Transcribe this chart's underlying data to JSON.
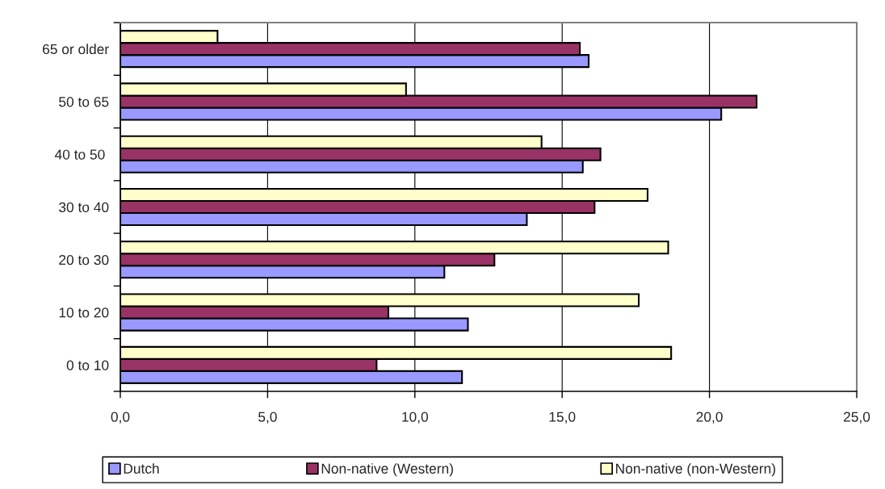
{
  "chart_data": {
    "type": "bar",
    "orientation": "horizontal",
    "categories": [
      "65 or older",
      "50 to 65",
      "40 to 50 ",
      "30 to 40",
      "20 to 30",
      "10 to 20",
      "0 to 10"
    ],
    "series": [
      {
        "name": "Dutch",
        "color": "#9999ff",
        "values": [
          15.9,
          20.4,
          15.7,
          13.8,
          11.0,
          11.8,
          11.6
        ]
      },
      {
        "name": "Non-native (Western)",
        "color": "#993366",
        "values": [
          15.6,
          21.6,
          16.3,
          16.1,
          12.7,
          9.1,
          8.7
        ]
      },
      {
        "name": "Non-native (non-Western)",
        "color": "#ffffcc",
        "values": [
          3.3,
          9.7,
          14.3,
          17.9,
          18.6,
          17.6,
          18.7
        ]
      }
    ],
    "xlim": [
      0,
      25
    ],
    "xticks": [
      {
        "value": 0,
        "label": "0,0"
      },
      {
        "value": 5,
        "label": "5,0"
      },
      {
        "value": 10,
        "label": "10,0"
      },
      {
        "value": 15,
        "label": "15,0"
      },
      {
        "value": 20,
        "label": "20,0"
      },
      {
        "value": 25,
        "label": "25,0"
      }
    ],
    "grid": "x",
    "legend": "bottom"
  }
}
